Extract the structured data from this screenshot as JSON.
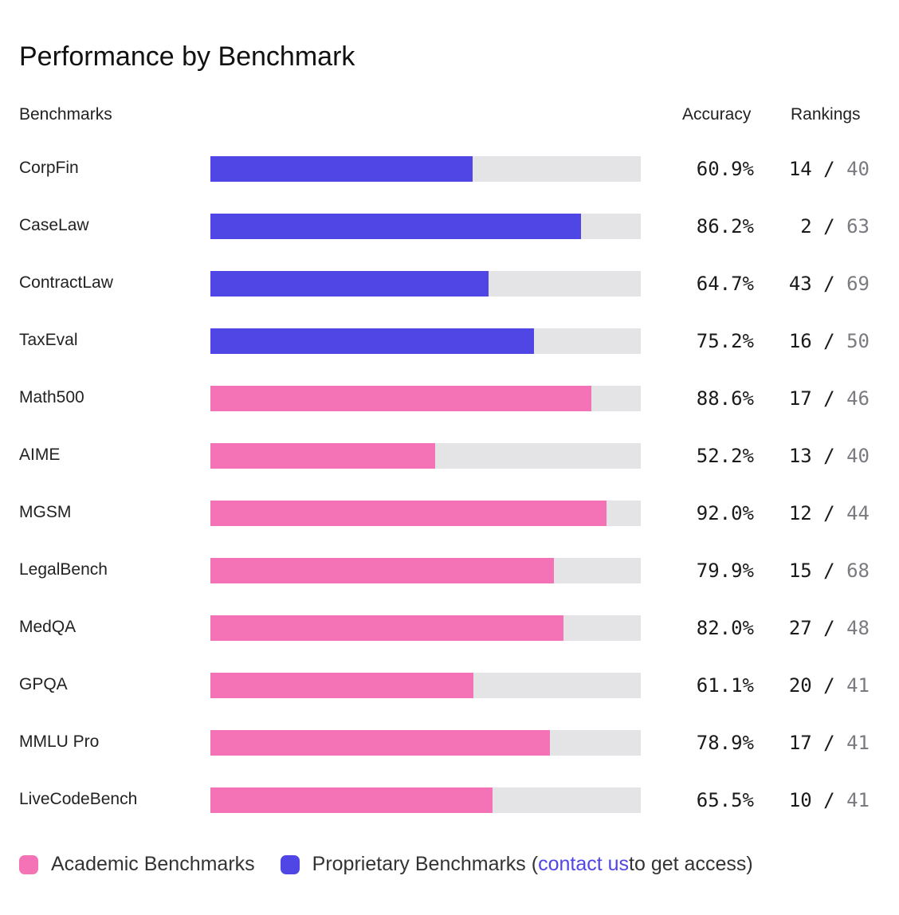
{
  "title": "Performance by Benchmark",
  "headers": {
    "benchmarks": "Benchmarks",
    "accuracy": "Accuracy",
    "rankings": "Rankings"
  },
  "colors": {
    "academic": "#f472b6",
    "proprietary": "#4f46e5",
    "track": "#e4e4e7"
  },
  "legend": {
    "academic": "Academic Benchmarks",
    "proprietary": "Proprietary Benchmarks (",
    "link": "contact us",
    "suffix": " to get access)"
  },
  "chart_data": {
    "type": "bar",
    "orientation": "horizontal",
    "title": "Performance by Benchmark",
    "xlim": [
      0,
      100
    ],
    "rows": [
      {
        "name": "CorpFin",
        "accuracy": 60.9,
        "accuracy_label": "60.9%",
        "rank": "14",
        "total": "40",
        "group": "proprietary"
      },
      {
        "name": "CaseLaw",
        "accuracy": 86.2,
        "accuracy_label": "86.2%",
        "rank": "2",
        "total": "63",
        "group": "proprietary"
      },
      {
        "name": "ContractLaw",
        "accuracy": 64.7,
        "accuracy_label": "64.7%",
        "rank": "43",
        "total": "69",
        "group": "proprietary"
      },
      {
        "name": "TaxEval",
        "accuracy": 75.2,
        "accuracy_label": "75.2%",
        "rank": "16",
        "total": "50",
        "group": "proprietary"
      },
      {
        "name": "Math500",
        "accuracy": 88.6,
        "accuracy_label": "88.6%",
        "rank": "17",
        "total": "46",
        "group": "academic"
      },
      {
        "name": "AIME",
        "accuracy": 52.2,
        "accuracy_label": "52.2%",
        "rank": "13",
        "total": "40",
        "group": "academic"
      },
      {
        "name": "MGSM",
        "accuracy": 92.0,
        "accuracy_label": "92.0%",
        "rank": "12",
        "total": "44",
        "group": "academic"
      },
      {
        "name": "LegalBench",
        "accuracy": 79.9,
        "accuracy_label": "79.9%",
        "rank": "15",
        "total": "68",
        "group": "academic"
      },
      {
        "name": "MedQA",
        "accuracy": 82.0,
        "accuracy_label": "82.0%",
        "rank": "27",
        "total": "48",
        "group": "academic"
      },
      {
        "name": "GPQA",
        "accuracy": 61.1,
        "accuracy_label": "61.1%",
        "rank": "20",
        "total": "41",
        "group": "academic"
      },
      {
        "name": "MMLU Pro",
        "accuracy": 78.9,
        "accuracy_label": "78.9%",
        "rank": "17",
        "total": "41",
        "group": "academic"
      },
      {
        "name": "LiveCodeBench",
        "accuracy": 65.5,
        "accuracy_label": "65.5%",
        "rank": "10",
        "total": "41",
        "group": "academic"
      }
    ]
  }
}
